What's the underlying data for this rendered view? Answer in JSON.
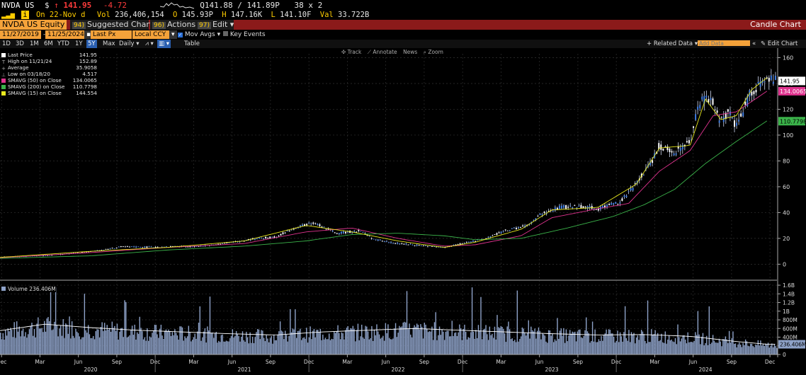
{
  "header": {
    "ticker": "NVDA US",
    "currency": "$",
    "arrow": "↑",
    "last": "141.95",
    "change": "-4.72",
    "bidask": "Q141.88 / 141.89P",
    "size": "38 x 2",
    "date_label": "On 22-Nov d",
    "vol_label": "Vol",
    "vol_value": "236,406,154",
    "open_label": "O",
    "open_value": "145.93P",
    "high_label": "H",
    "high_value": "147.16K",
    "low_label": "L",
    "low_value": "141.10F",
    "val_label": "Val",
    "val_value": "33.722B"
  },
  "toolbar": {
    "security": "NVDA US Equity",
    "suggested_num": "94)",
    "suggested": "Suggested Charts",
    "actions_num": "96)",
    "actions": "Actions",
    "edit_num": "97)",
    "edit": "Edit",
    "title_right": "Candle Chart"
  },
  "options": {
    "start_date": "11/27/2019",
    "end_date": "11/25/2024",
    "price_field": "Last Px",
    "currency": "Local CCY",
    "mov_avgs": "Mov Avgs",
    "key_events": "Key Events"
  },
  "periods": [
    "1D",
    "3D",
    "1M",
    "6M",
    "YTD",
    "1Y",
    "5Y",
    "Max"
  ],
  "selected_period": "5Y",
  "frequency": "Daily",
  "table_label": "Table",
  "related_data": "+ Related Data",
  "add_data_placeholder": "Add Data",
  "edit_chart": "Edit Chart",
  "chart_tools": [
    "Track",
    "Annotate",
    "News",
    "Zoom"
  ],
  "legend": [
    {
      "label": "Last Price",
      "value": "141.95",
      "color": "#ffffff"
    },
    {
      "label": "High on 11/21/24",
      "value": "152.89",
      "color": ""
    },
    {
      "label": "Average",
      "value": "35.9058",
      "color": ""
    },
    {
      "label": "Low on 03/18/20",
      "value": "4.517",
      "color": ""
    },
    {
      "label": "SMAVG (50)  on Close",
      "value": "134.0065",
      "color": "#e0338f"
    },
    {
      "label": "SMAVG (200)  on Close",
      "value": "110.7798",
      "color": "#3bb34a"
    },
    {
      "label": "SMAVG (15)  on Close",
      "value": "144.554",
      "color": "#e8e81e"
    }
  ],
  "legend_markers": [
    "T",
    "+",
    "⊥"
  ],
  "volume_label": "Volume  236.406M",
  "price_tags": {
    "last": "141.95",
    "sma50": "134.0065",
    "sma200": "110.7798"
  },
  "volume_tag": "236.406M",
  "chart_data": [
    {
      "type": "candlestick",
      "title": "",
      "y_ticks": [
        "0",
        "20",
        "40",
        "60",
        "80",
        "100",
        "120",
        "140",
        "160"
      ],
      "ylim": [
        -8,
        163
      ],
      "x_month_ticks": [
        "Dec",
        "Mar",
        "Jun",
        "Sep",
        "Dec",
        "Mar",
        "Jun",
        "Sep",
        "Dec",
        "Mar",
        "Jun",
        "Sep",
        "Dec",
        "Mar",
        "Jun",
        "Sep",
        "Dec",
        "Mar",
        "Jun",
        "Sep",
        "Dec"
      ],
      "x_year_ticks": [
        "2020",
        "2021",
        "2022",
        "2023",
        "2024"
      ],
      "grid": true,
      "series": [
        {
          "name": "Last Price",
          "x": [
            2019.91,
            2020.0,
            2020.2,
            2020.4,
            2020.55,
            2020.7,
            2020.9,
            2021.0,
            2021.2,
            2021.4,
            2021.55,
            2021.7,
            2021.85,
            2021.95,
            2022.1,
            2022.25,
            2022.35,
            2022.5,
            2022.7,
            2022.8,
            2022.95,
            2023.05,
            2023.2,
            2023.35,
            2023.42,
            2023.55,
            2023.7,
            2023.8,
            2023.95,
            2024.05,
            2024.15,
            2024.2,
            2024.3,
            2024.4,
            2024.45,
            2024.5,
            2024.55,
            2024.6,
            2024.65,
            2024.7,
            2024.75,
            2024.8,
            2024.9
          ],
          "y": [
            5.2,
            5.9,
            6.7,
            8.5,
            10.5,
            13.5,
            13.2,
            13.5,
            13.8,
            16.5,
            19.5,
            21,
            29,
            32,
            24,
            26,
            19,
            16,
            14,
            13,
            17,
            19,
            26,
            30,
            38,
            44,
            45,
            43,
            49,
            62,
            80,
            92,
            87,
            95,
            120,
            130,
            125,
            110,
            117,
            105,
            120,
            135,
            142
          ]
        },
        {
          "name": "SMAVG (50)  on Close",
          "x": [
            2019.91,
            2020.5,
            2021.0,
            2021.5,
            2021.9,
            2022.2,
            2022.5,
            2022.8,
            2023.0,
            2023.3,
            2023.5,
            2023.8,
            2024.0,
            2024.2,
            2024.4,
            2024.55,
            2024.7,
            2024.9
          ],
          "y": [
            5,
            9,
            13,
            16,
            25,
            28,
            20,
            14,
            15,
            22,
            36,
            43,
            47,
            72,
            88,
            115,
            118,
            134
          ]
        },
        {
          "name": "SMAVG (200)  on Close",
          "x": [
            2019.91,
            2020.5,
            2021.0,
            2021.5,
            2021.9,
            2022.2,
            2022.5,
            2022.8,
            2023.0,
            2023.3,
            2023.6,
            2023.9,
            2024.1,
            2024.3,
            2024.5,
            2024.7,
            2024.9
          ],
          "y": [
            4.5,
            6.5,
            11,
            14,
            18,
            23,
            24,
            22,
            19,
            20,
            28,
            37,
            46,
            58,
            78,
            95,
            111
          ]
        },
        {
          "name": "SMAVG (15)  on Close",
          "x": [
            2019.91,
            2020.5,
            2021.0,
            2021.5,
            2021.9,
            2022.2,
            2022.5,
            2022.8,
            2023.0,
            2023.3,
            2023.5,
            2023.8,
            2024.05,
            2024.2,
            2024.4,
            2024.5,
            2024.6,
            2024.7,
            2024.8,
            2024.9
          ],
          "y": [
            5.3,
            10,
            13,
            18,
            30,
            25,
            18,
            13,
            17,
            27,
            42,
            44,
            62,
            90,
            92,
            128,
            112,
            115,
            135,
            144.5
          ]
        }
      ]
    },
    {
      "type": "bar",
      "title": "Volume",
      "y_ticks": [
        "0",
        "200M",
        "400M",
        "600M",
        "800M",
        "1B",
        "1.2B",
        "1.4B",
        "1.6B"
      ],
      "ylim": [
        0,
        1650
      ],
      "unit": "M",
      "series": [
        {
          "name": "Volume",
          "x": [
            2019.91,
            2020.2,
            2020.5,
            2020.8,
            2021.1,
            2021.4,
            2021.7,
            2022.0,
            2022.3,
            2022.6,
            2022.9,
            2023.2,
            2023.5,
            2023.8,
            2024.1,
            2024.4,
            2024.7,
            2024.9
          ],
          "values": [
            550,
            700,
            620,
            560,
            520,
            480,
            450,
            520,
            560,
            600,
            560,
            520,
            480,
            450,
            460,
            420,
            300,
            236
          ]
        }
      ]
    }
  ]
}
